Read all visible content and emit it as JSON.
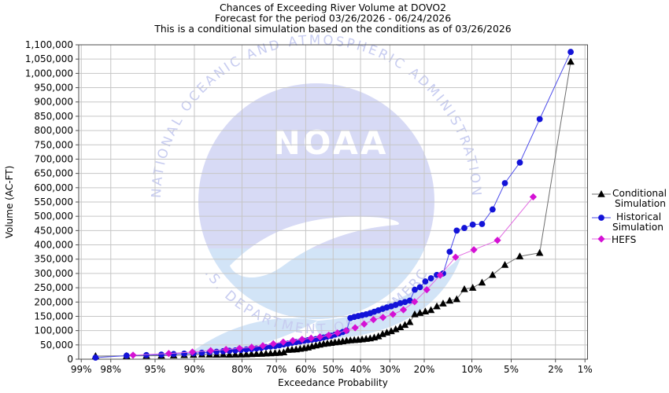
{
  "title": {
    "line1": "Chances of Exceeding River Volume at DOVO2",
    "line2": "Forecast for the period 03/26/2026 - 06/24/2026",
    "line3": "This is a conditional simulation based on the conditions as of 03/26/2026"
  },
  "watermark": {
    "arc_top": "NATIONAL OCEANIC AND ATMOSPHERIC ADMINISTRATION",
    "arc_bottom": "U.S. DEPARTMENT OF COMMERCE",
    "emblem_text": "NOAA",
    "disc_color": "#d7daf5",
    "sea_color": "#d2e4f7",
    "gull_color": "#ffffff",
    "arc_text_color": "#c7ccf0",
    "emblem_text_color": "#ffffff"
  },
  "colors": {
    "background": "#ffffff",
    "grid": "#c6c6c6",
    "frame": "#4d4d4d",
    "text": "#000000"
  },
  "legend": {
    "items": [
      {
        "label_line1": "Conditional",
        "label_line2": "Simulation"
      },
      {
        "label_line1": "Historical",
        "label_line2": "Simulation"
      },
      {
        "label_line1": "HEFS",
        "label_line2": ""
      }
    ]
  },
  "chart_data": {
    "type": "line",
    "title": "Chances of Exceeding River Volume at DOVO2",
    "xlabel": "Exceedance Probability",
    "ylabel": "Volume (AC-FT)",
    "x_scale": "probit",
    "x_ticks_percent": [
      99,
      98,
      95,
      90,
      80,
      70,
      60,
      50,
      40,
      30,
      20,
      10,
      5,
      2,
      1
    ],
    "x_range_percent": [
      99.06,
      0.94
    ],
    "ylim": [
      0,
      1100000
    ],
    "y_tick_step": 50000,
    "grid": true,
    "legend_position": "right",
    "series": [
      {
        "name": "Conditional Simulation",
        "marker": "triangle",
        "marker_color": "#000000",
        "line_color": "#6e6e6e",
        "points": [
          [
            98.59,
            11000
          ],
          [
            97.18,
            11500
          ],
          [
            95.77,
            12000
          ],
          [
            94.37,
            12500
          ],
          [
            92.96,
            13500
          ],
          [
            91.55,
            14500
          ],
          [
            90.14,
            15500
          ],
          [
            88.73,
            16600
          ],
          [
            87.32,
            16000
          ],
          [
            85.92,
            15800
          ],
          [
            84.51,
            16000
          ],
          [
            83.1,
            15800
          ],
          [
            81.69,
            16000
          ],
          [
            80.28,
            16500
          ],
          [
            78.87,
            17000
          ],
          [
            77.46,
            18000
          ],
          [
            76.06,
            18500
          ],
          [
            74.65,
            19000
          ],
          [
            73.24,
            20000
          ],
          [
            71.83,
            20500
          ],
          [
            70.42,
            21500
          ],
          [
            69.01,
            22500
          ],
          [
            67.61,
            24000
          ],
          [
            66.2,
            32500
          ],
          [
            64.79,
            33500
          ],
          [
            63.38,
            34500
          ],
          [
            61.97,
            36500
          ],
          [
            60.56,
            38500
          ],
          [
            59.15,
            41000
          ],
          [
            57.75,
            45000
          ],
          [
            56.34,
            48000
          ],
          [
            54.93,
            51000
          ],
          [
            53.52,
            53500
          ],
          [
            52.11,
            55500
          ],
          [
            50.7,
            57000
          ],
          [
            49.3,
            59000
          ],
          [
            47.89,
            60500
          ],
          [
            46.48,
            62500
          ],
          [
            45.07,
            64500
          ],
          [
            43.66,
            66000
          ],
          [
            42.25,
            67000
          ],
          [
            40.85,
            68000
          ],
          [
            39.44,
            69500
          ],
          [
            38.03,
            71000
          ],
          [
            36.62,
            73000
          ],
          [
            35.21,
            76000
          ],
          [
            33.8,
            80000
          ],
          [
            32.39,
            88000
          ],
          [
            30.99,
            93000
          ],
          [
            29.58,
            98000
          ],
          [
            28.17,
            105000
          ],
          [
            26.76,
            112000
          ],
          [
            25.35,
            120000
          ],
          [
            23.94,
            130000
          ],
          [
            22.54,
            157000
          ],
          [
            21.13,
            162000
          ],
          [
            19.72,
            167000
          ],
          [
            18.31,
            172000
          ],
          [
            16.9,
            185000
          ],
          [
            15.49,
            195000
          ],
          [
            14.08,
            205000
          ],
          [
            12.68,
            210000
          ],
          [
            11.27,
            245000
          ],
          [
            9.86,
            250000
          ],
          [
            8.45,
            268000
          ],
          [
            7.04,
            295000
          ],
          [
            5.63,
            330000
          ],
          [
            4.23,
            360000
          ],
          [
            2.82,
            372000
          ],
          [
            1.41,
            1041000
          ]
        ]
      },
      {
        "name": "Historical Simulation",
        "marker": "circle",
        "marker_color": "#1313d8",
        "line_color": "#4b4bea",
        "points": [
          [
            98.59,
            5500
          ],
          [
            97.18,
            12500
          ],
          [
            95.77,
            14500
          ],
          [
            94.37,
            16000
          ],
          [
            92.96,
            18000
          ],
          [
            91.55,
            19500
          ],
          [
            90.14,
            20500
          ],
          [
            88.73,
            22500
          ],
          [
            87.32,
            24000
          ],
          [
            85.92,
            26000
          ],
          [
            84.51,
            28000
          ],
          [
            83.1,
            29500
          ],
          [
            81.69,
            30500
          ],
          [
            80.28,
            32500
          ],
          [
            78.87,
            34000
          ],
          [
            77.46,
            35500
          ],
          [
            76.06,
            37500
          ],
          [
            74.65,
            39500
          ],
          [
            73.24,
            42500
          ],
          [
            71.83,
            44500
          ],
          [
            70.42,
            46000
          ],
          [
            69.01,
            48500
          ],
          [
            67.61,
            51500
          ],
          [
            66.2,
            54500
          ],
          [
            64.79,
            57500
          ],
          [
            63.38,
            60000
          ],
          [
            61.97,
            62000
          ],
          [
            60.56,
            64500
          ],
          [
            59.15,
            66500
          ],
          [
            57.75,
            68500
          ],
          [
            56.34,
            70500
          ],
          [
            54.93,
            73000
          ],
          [
            53.52,
            76000
          ],
          [
            52.11,
            79000
          ],
          [
            50.7,
            82000
          ],
          [
            49.3,
            86000
          ],
          [
            47.89,
            90000
          ],
          [
            46.48,
            95000
          ],
          [
            45.07,
            100000
          ],
          [
            43.66,
            144000
          ],
          [
            42.25,
            148000
          ],
          [
            40.85,
            151000
          ],
          [
            39.44,
            154000
          ],
          [
            38.03,
            157000
          ],
          [
            36.62,
            161000
          ],
          [
            35.21,
            166000
          ],
          [
            33.8,
            171000
          ],
          [
            32.39,
            176000
          ],
          [
            30.99,
            181000
          ],
          [
            29.58,
            185000
          ],
          [
            28.17,
            190000
          ],
          [
            26.76,
            196000
          ],
          [
            25.35,
            200000
          ],
          [
            23.94,
            205000
          ],
          [
            22.54,
            243000
          ],
          [
            21.13,
            252000
          ],
          [
            19.72,
            272000
          ],
          [
            18.31,
            283000
          ],
          [
            16.9,
            295000
          ],
          [
            15.49,
            300000
          ],
          [
            14.08,
            376000
          ],
          [
            12.68,
            450000
          ],
          [
            11.27,
            459000
          ],
          [
            9.86,
            471000
          ],
          [
            8.45,
            473000
          ],
          [
            7.04,
            524000
          ],
          [
            5.63,
            616000
          ],
          [
            4.23,
            688000
          ],
          [
            2.82,
            840000
          ],
          [
            1.41,
            1075000
          ]
        ]
      },
      {
        "name": "HEFS",
        "marker": "diamond",
        "marker_color": "#d411d4",
        "line_color": "#e26ce2",
        "points": [
          [
            96.77,
            14000
          ],
          [
            93.55,
            20000
          ],
          [
            90.32,
            25000
          ],
          [
            87.1,
            30000
          ],
          [
            83.87,
            34000
          ],
          [
            80.65,
            38000
          ],
          [
            77.42,
            42000
          ],
          [
            74.19,
            47000
          ],
          [
            70.97,
            54000
          ],
          [
            67.74,
            60000
          ],
          [
            64.52,
            65000
          ],
          [
            61.29,
            69500
          ],
          [
            58.06,
            73500
          ],
          [
            54.84,
            78000
          ],
          [
            51.61,
            84000
          ],
          [
            48.39,
            92000
          ],
          [
            45.16,
            100000
          ],
          [
            41.94,
            110000
          ],
          [
            38.71,
            123000
          ],
          [
            35.48,
            138500
          ],
          [
            32.26,
            146000
          ],
          [
            29.03,
            157000
          ],
          [
            25.81,
            173000
          ],
          [
            22.58,
            201000
          ],
          [
            19.35,
            243000
          ],
          [
            16.13,
            294000
          ],
          [
            12.9,
            357000
          ],
          [
            9.68,
            383000
          ],
          [
            6.45,
            416000
          ],
          [
            3.23,
            568000
          ]
        ]
      }
    ]
  }
}
